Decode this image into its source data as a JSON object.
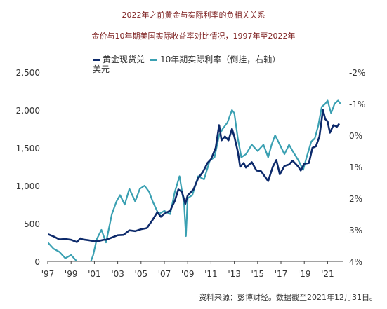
{
  "header": {
    "title": "2022年之前黄金与实际利率的负相关关系",
    "subtitle": "金价与10年期美国实际收益率对比情况，1997年至2022年"
  },
  "source_note": "资料来源：彭博财经。数据截至2021年12月31日。",
  "colors": {
    "gold": "#0d2a6b",
    "yield": "#3aa0b2"
  },
  "chart_data": {
    "type": "line",
    "left_axis": {
      "range": [
        0,
        2500
      ],
      "ticks": [
        "0",
        "500",
        "1,000",
        "1,500",
        "2,000",
        "2,500"
      ]
    },
    "right_axis": {
      "range": [
        -2,
        4
      ],
      "inverted": true,
      "ticks": [
        "-2%",
        "-1%",
        "0%",
        "1%",
        "2%",
        "3%",
        "4%"
      ]
    },
    "x_axis": {
      "range": [
        1997,
        2022.3
      ],
      "ticks": [
        "'97",
        "'99",
        "'01",
        "'03",
        "'05",
        "'07",
        "'09",
        "'11",
        "'13",
        "'15",
        "'17",
        "'19",
        "'21"
      ]
    },
    "series": [
      {
        "name": "黄金现货兑美元",
        "axis": "left",
        "points": [
          [
            1997.0,
            360
          ],
          [
            1997.5,
            330
          ],
          [
            1998.0,
            290
          ],
          [
            1998.5,
            295
          ],
          [
            1999.0,
            285
          ],
          [
            1999.5,
            255
          ],
          [
            1999.8,
            305
          ],
          [
            2000.0,
            290
          ],
          [
            2000.5,
            280
          ],
          [
            2001.0,
            265
          ],
          [
            2001.4,
            270
          ],
          [
            2001.8,
            285
          ],
          [
            2002.0,
            285
          ],
          [
            2002.5,
            315
          ],
          [
            2003.0,
            345
          ],
          [
            2003.5,
            350
          ],
          [
            2004.0,
            410
          ],
          [
            2004.5,
            400
          ],
          [
            2005.0,
            425
          ],
          [
            2005.5,
            440
          ],
          [
            2006.0,
            550
          ],
          [
            2006.4,
            650
          ],
          [
            2006.7,
            590
          ],
          [
            2007.0,
            630
          ],
          [
            2007.5,
            670
          ],
          [
            2007.9,
            800
          ],
          [
            2008.2,
            950
          ],
          [
            2008.5,
            920
          ],
          [
            2008.8,
            760
          ],
          [
            2009.0,
            870
          ],
          [
            2009.5,
            950
          ],
          [
            2009.9,
            1100
          ],
          [
            2010.3,
            1180
          ],
          [
            2010.7,
            1300
          ],
          [
            2011.0,
            1350
          ],
          [
            2011.4,
            1500
          ],
          [
            2011.7,
            1800
          ],
          [
            2011.9,
            1600
          ],
          [
            2012.2,
            1650
          ],
          [
            2012.5,
            1600
          ],
          [
            2012.8,
            1750
          ],
          [
            2013.0,
            1650
          ],
          [
            2013.3,
            1450
          ],
          [
            2013.5,
            1250
          ],
          [
            2013.8,
            1300
          ],
          [
            2014.0,
            1240
          ],
          [
            2014.5,
            1310
          ],
          [
            2014.9,
            1200
          ],
          [
            2015.3,
            1190
          ],
          [
            2015.9,
            1060
          ],
          [
            2016.3,
            1250
          ],
          [
            2016.6,
            1340
          ],
          [
            2016.9,
            1150
          ],
          [
            2017.3,
            1260
          ],
          [
            2017.7,
            1280
          ],
          [
            2018.0,
            1330
          ],
          [
            2018.5,
            1250
          ],
          [
            2018.7,
            1200
          ],
          [
            2019.0,
            1290
          ],
          [
            2019.4,
            1300
          ],
          [
            2019.7,
            1500
          ],
          [
            2020.0,
            1520
          ],
          [
            2020.3,
            1650
          ],
          [
            2020.6,
            2000
          ],
          [
            2020.8,
            1880
          ],
          [
            2021.0,
            1850
          ],
          [
            2021.2,
            1700
          ],
          [
            2021.5,
            1800
          ],
          [
            2021.8,
            1780
          ],
          [
            2022.0,
            1820
          ]
        ]
      },
      {
        "name": "10年期实际利率（倒挂，右轴）",
        "axis": "right",
        "points": [
          [
            1997.0,
            3.4
          ],
          [
            1997.5,
            3.6
          ],
          [
            1998.0,
            3.7
          ],
          [
            1998.5,
            3.9
          ],
          [
            1999.0,
            3.8
          ],
          [
            1999.5,
            4.0
          ],
          [
            2000.0,
            4.1
          ],
          [
            2000.5,
            4.2
          ],
          [
            2000.9,
            3.8
          ],
          [
            2001.2,
            3.3
          ],
          [
            2001.6,
            3.0
          ],
          [
            2002.0,
            3.4
          ],
          [
            2002.5,
            2.5
          ],
          [
            2002.9,
            2.1
          ],
          [
            2003.2,
            1.9
          ],
          [
            2003.6,
            2.2
          ],
          [
            2004.0,
            1.7
          ],
          [
            2004.5,
            2.1
          ],
          [
            2004.9,
            1.7
          ],
          [
            2005.3,
            1.6
          ],
          [
            2005.7,
            1.8
          ],
          [
            2006.0,
            2.1
          ],
          [
            2006.5,
            2.5
          ],
          [
            2007.0,
            2.4
          ],
          [
            2007.5,
            2.5
          ],
          [
            2007.9,
            1.8
          ],
          [
            2008.3,
            1.3
          ],
          [
            2008.7,
            2.2
          ],
          [
            2008.85,
            3.2
          ],
          [
            2009.0,
            2.0
          ],
          [
            2009.4,
            1.9
          ],
          [
            2009.9,
            1.3
          ],
          [
            2010.4,
            1.4
          ],
          [
            2010.9,
            0.8
          ],
          [
            2011.3,
            0.7
          ],
          [
            2011.7,
            0.0
          ],
          [
            2012.0,
            -0.2
          ],
          [
            2012.4,
            -0.4
          ],
          [
            2012.8,
            -0.8
          ],
          [
            2013.0,
            -0.7
          ],
          [
            2013.3,
            0.1
          ],
          [
            2013.6,
            0.7
          ],
          [
            2014.0,
            0.6
          ],
          [
            2014.5,
            0.3
          ],
          [
            2015.0,
            0.5
          ],
          [
            2015.5,
            0.3
          ],
          [
            2015.9,
            0.7
          ],
          [
            2016.2,
            0.3
          ],
          [
            2016.5,
            0.0
          ],
          [
            2016.9,
            0.3
          ],
          [
            2017.3,
            0.6
          ],
          [
            2017.7,
            0.3
          ],
          [
            2018.0,
            0.5
          ],
          [
            2018.5,
            0.8
          ],
          [
            2018.9,
            1.1
          ],
          [
            2019.2,
            0.7
          ],
          [
            2019.6,
            0.2
          ],
          [
            2019.9,
            0.1
          ],
          [
            2020.2,
            -0.3
          ],
          [
            2020.5,
            -0.9
          ],
          [
            2020.8,
            -1.0
          ],
          [
            2021.0,
            -1.1
          ],
          [
            2021.3,
            -0.7
          ],
          [
            2021.6,
            -1.0
          ],
          [
            2021.9,
            -1.1
          ],
          [
            2022.1,
            -1.0
          ]
        ]
      }
    ]
  }
}
